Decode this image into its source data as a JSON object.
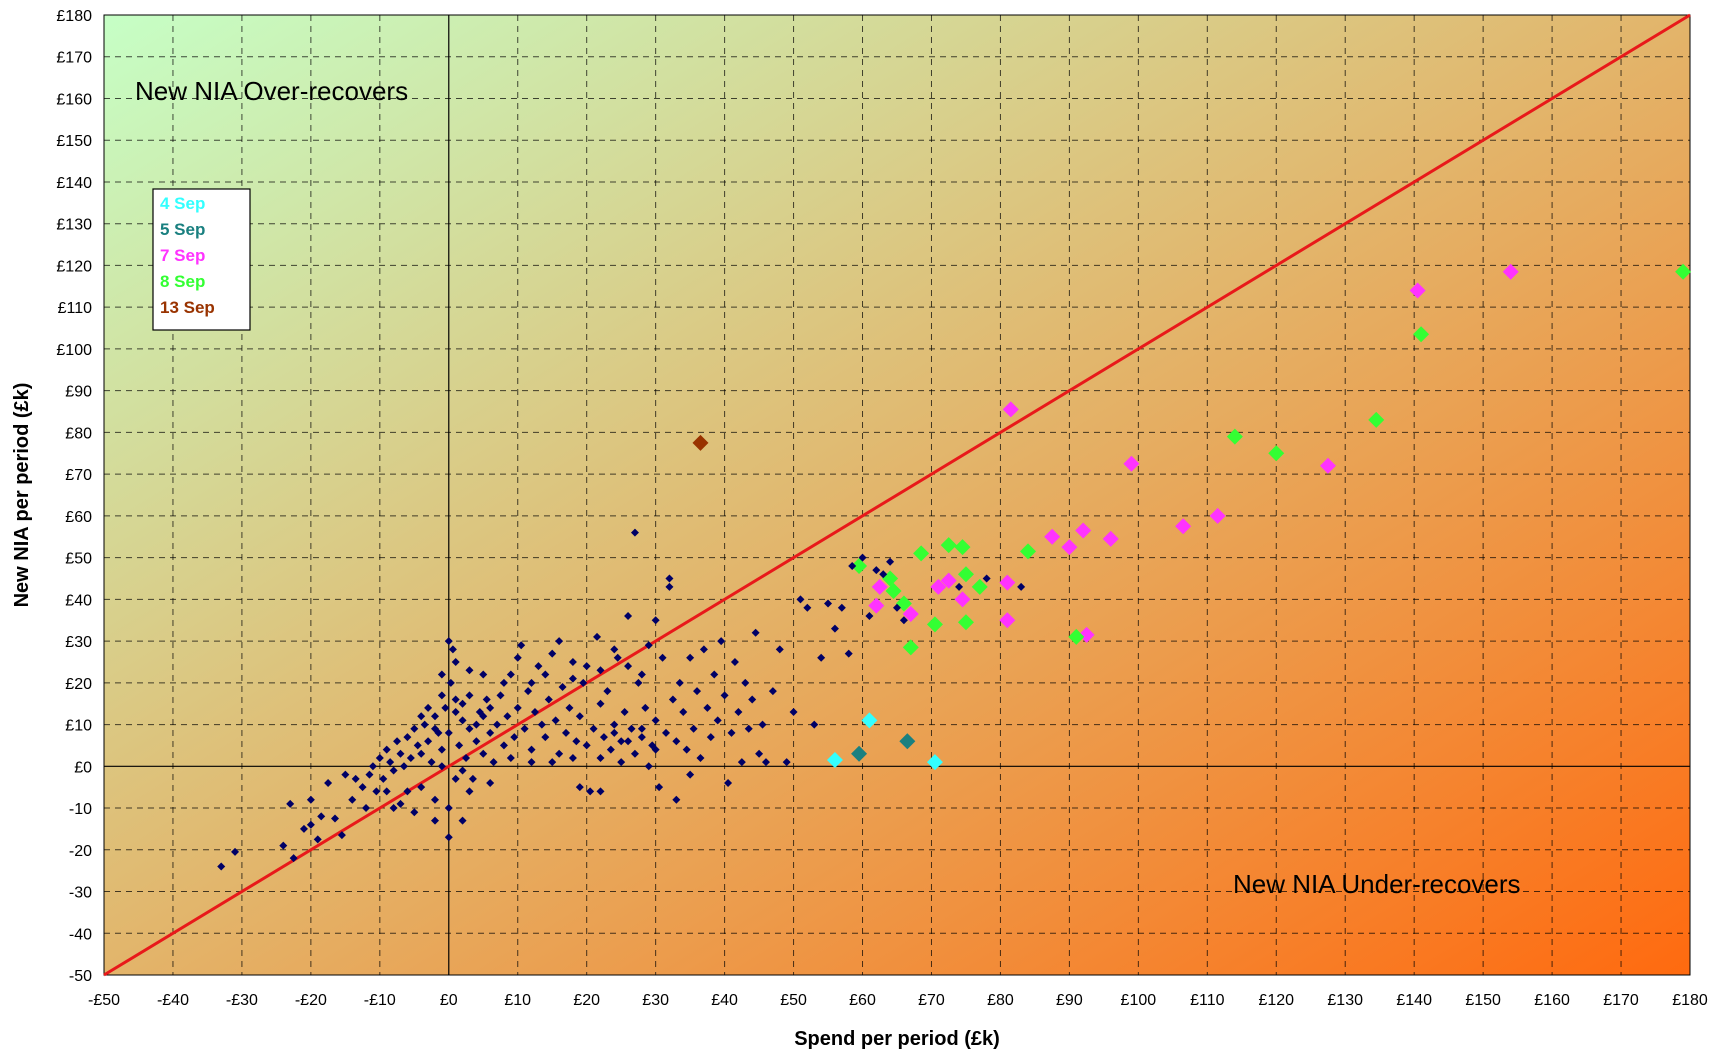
{
  "chart_data": {
    "type": "scatter",
    "xlabel": "Spend per period (£k)",
    "ylabel": "New NIA per period (£k)",
    "xlim": [
      -50,
      180
    ],
    "ylim": [
      -50,
      180
    ],
    "x_ticks": [
      "-£50",
      "-£40",
      "-£30",
      "-£20",
      "-£10",
      "£0",
      "£10",
      "£20",
      "£30",
      "£40",
      "£50",
      "£60",
      "£70",
      "£80",
      "£90",
      "£100",
      "£110",
      "£120",
      "£130",
      "£140",
      "£150",
      "£160",
      "£170",
      "£180"
    ],
    "y_ticks": [
      "-50",
      "-40",
      "-30",
      "-20",
      "-10",
      "£0",
      "£10",
      "£20",
      "£30",
      "£40",
      "£50",
      "£60",
      "£70",
      "£80",
      "£90",
      "£100",
      "£110",
      "£120",
      "£130",
      "£140",
      "£150",
      "£160",
      "£170",
      "£180"
    ],
    "grid": true,
    "background_gradient": [
      "#c6ffc6",
      "#ff6a0f"
    ],
    "reference_line": {
      "from": [
        -50,
        -50
      ],
      "to": [
        180,
        180
      ],
      "color": "#e8191a"
    },
    "annotations": {
      "over": "New NIA Over-recovers",
      "under": "New NIA Under-recovers"
    },
    "legend_position": "top-left",
    "legend": [
      {
        "label": "4 Sep",
        "color": "#33ffff"
      },
      {
        "label": "5 Sep",
        "color": "#1a8080"
      },
      {
        "label": "7 Sep",
        "color": "#ff33ff"
      },
      {
        "label": "8 Sep",
        "color": "#33ff33"
      },
      {
        "label": "13 Sep",
        "color": "#993300"
      }
    ],
    "series": [
      {
        "name": "4 Sep",
        "color": "#33ffff",
        "points": [
          [
            56,
            1.5
          ],
          [
            61,
            11
          ],
          [
            70.5,
            1
          ]
        ]
      },
      {
        "name": "5 Sep",
        "color": "#1a8080",
        "points": [
          [
            59.5,
            3
          ],
          [
            66.5,
            6
          ]
        ]
      },
      {
        "name": "7 Sep",
        "color": "#ff33ff",
        "points": [
          [
            62,
            38.5
          ],
          [
            62.5,
            43
          ],
          [
            67,
            36.5
          ],
          [
            71,
            43
          ],
          [
            72.5,
            44.5
          ],
          [
            74.5,
            40
          ],
          [
            81,
            44
          ],
          [
            81,
            35
          ],
          [
            81.5,
            85.5
          ],
          [
            87.5,
            55
          ],
          [
            90,
            52.5
          ],
          [
            92,
            56.5
          ],
          [
            92.5,
            31.5
          ],
          [
            96,
            54.5
          ],
          [
            99,
            72.5
          ],
          [
            106.5,
            57.5
          ],
          [
            111.5,
            60
          ],
          [
            127.5,
            72
          ],
          [
            140.5,
            114
          ],
          [
            154,
            118.5
          ]
        ]
      },
      {
        "name": "8 Sep",
        "color": "#33ff33",
        "points": [
          [
            59.5,
            48
          ],
          [
            64,
            45
          ],
          [
            64.5,
            42
          ],
          [
            66,
            39
          ],
          [
            67,
            28.5
          ],
          [
            68.5,
            51
          ],
          [
            70.5,
            34
          ],
          [
            72.5,
            53
          ],
          [
            74.5,
            52.5
          ],
          [
            75,
            46
          ],
          [
            75,
            34.5
          ],
          [
            77,
            43
          ],
          [
            84,
            51.5
          ],
          [
            91,
            31
          ],
          [
            114,
            79
          ],
          [
            120,
            75
          ],
          [
            134.5,
            83
          ],
          [
            141,
            103.5
          ],
          [
            179,
            118.5
          ]
        ]
      },
      {
        "name": "13 Sep",
        "color": "#993300",
        "points": [
          [
            36.5,
            77.5
          ]
        ]
      },
      {
        "name": "",
        "color": "#000066",
        "points": [
          [
            -33,
            -24
          ],
          [
            -31,
            -20.5
          ],
          [
            -24,
            -19
          ],
          [
            -23,
            -9
          ],
          [
            -22.5,
            -22
          ],
          [
            -21,
            -15
          ],
          [
            -20,
            -14
          ],
          [
            -20,
            -8
          ],
          [
            -19,
            -17.5
          ],
          [
            -18.5,
            -12
          ],
          [
            -17.5,
            -4
          ],
          [
            -16.5,
            -12.5
          ],
          [
            -15.5,
            -16.5
          ],
          [
            -15,
            -2
          ],
          [
            -14,
            -8
          ],
          [
            -13.5,
            -3
          ],
          [
            -12.5,
            -5
          ],
          [
            -12,
            -10
          ],
          [
            -11.5,
            -2
          ],
          [
            -11,
            0
          ],
          [
            -10.5,
            -6
          ],
          [
            -10,
            2
          ],
          [
            -9.5,
            -3
          ],
          [
            -9,
            4
          ],
          [
            -8.5,
            1
          ],
          [
            -8,
            -1
          ],
          [
            -7.5,
            6
          ],
          [
            -7,
            3
          ],
          [
            -6.5,
            0
          ],
          [
            -6,
            7
          ],
          [
            -5.5,
            2
          ],
          [
            -5,
            9
          ],
          [
            -4.5,
            5
          ],
          [
            -4,
            3
          ],
          [
            -3.5,
            10
          ],
          [
            -3,
            6
          ],
          [
            -2.5,
            1
          ],
          [
            -2,
            12
          ],
          [
            -1.5,
            8
          ],
          [
            -1,
            4
          ],
          [
            -0.5,
            14
          ],
          [
            0,
            8
          ],
          [
            0.3,
            20
          ],
          [
            0.6,
            28
          ],
          [
            1,
            16
          ],
          [
            1.5,
            5
          ],
          [
            2,
            11
          ],
          [
            2.5,
            2
          ],
          [
            3,
            9
          ],
          [
            3.5,
            -3
          ],
          [
            4,
            6
          ],
          [
            4.5,
            13
          ],
          [
            5,
            3
          ],
          [
            5.5,
            16
          ],
          [
            6,
            8
          ],
          [
            6.5,
            1
          ],
          [
            7,
            10
          ],
          [
            7.5,
            17
          ],
          [
            8,
            5
          ],
          [
            8.5,
            12
          ],
          [
            9,
            22
          ],
          [
            9.5,
            7
          ],
          [
            10,
            14
          ],
          [
            10.5,
            29
          ],
          [
            11,
            9
          ],
          [
            11.5,
            18
          ],
          [
            12,
            4
          ],
          [
            12.5,
            13
          ],
          [
            13,
            24
          ],
          [
            13.5,
            10
          ],
          [
            14,
            7
          ],
          [
            14.5,
            16
          ],
          [
            15,
            27
          ],
          [
            15.5,
            11
          ],
          [
            16,
            3
          ],
          [
            16.5,
            19
          ],
          [
            17,
            8
          ],
          [
            17.5,
            14
          ],
          [
            18,
            25
          ],
          [
            18.5,
            6
          ],
          [
            19,
            12
          ],
          [
            19.5,
            20
          ],
          [
            20,
            5
          ],
          [
            20.5,
            -6
          ],
          [
            21,
            9
          ],
          [
            21.5,
            31
          ],
          [
            22,
            15
          ],
          [
            22.5,
            7
          ],
          [
            23,
            18
          ],
          [
            23.5,
            4
          ],
          [
            24,
            10
          ],
          [
            24.5,
            26
          ],
          [
            25,
            6
          ],
          [
            25.5,
            13
          ],
          [
            26,
            36
          ],
          [
            26.5,
            9
          ],
          [
            27,
            3
          ],
          [
            27.5,
            20
          ],
          [
            28,
            7
          ],
          [
            28.5,
            14
          ],
          [
            29,
            29
          ],
          [
            29.5,
            5
          ],
          [
            30,
            11
          ],
          [
            30.5,
            -5
          ],
          [
            31,
            26
          ],
          [
            31.5,
            8
          ],
          [
            32,
            43
          ],
          [
            32.5,
            16
          ],
          [
            33,
            6
          ],
          [
            33.5,
            20
          ],
          [
            34,
            13
          ],
          [
            34.5,
            4
          ],
          [
            35,
            26
          ],
          [
            35.5,
            9
          ],
          [
            36,
            18
          ],
          [
            36.5,
            2
          ],
          [
            37,
            28
          ],
          [
            37.5,
            14
          ],
          [
            38,
            7
          ],
          [
            38.5,
            22
          ],
          [
            39,
            11
          ],
          [
            39.5,
            30
          ],
          [
            40,
            17
          ],
          [
            40.5,
            -4
          ],
          [
            41,
            8
          ],
          [
            41.5,
            25
          ],
          [
            42,
            13
          ],
          [
            42.5,
            1
          ],
          [
            43,
            20
          ],
          [
            43.5,
            9
          ],
          [
            44,
            16
          ],
          [
            44.5,
            32
          ],
          [
            45,
            3
          ],
          [
            45.5,
            10
          ],
          [
            46,
            1
          ],
          [
            47,
            18
          ],
          [
            48,
            28
          ],
          [
            49,
            1
          ],
          [
            50,
            13
          ],
          [
            51,
            40
          ],
          [
            52,
            38
          ],
          [
            53,
            10
          ],
          [
            54,
            26
          ],
          [
            55,
            39
          ],
          [
            56,
            33
          ],
          [
            57,
            38
          ],
          [
            58,
            27
          ],
          [
            58.5,
            48
          ],
          [
            60,
            50
          ],
          [
            61,
            36
          ],
          [
            62,
            47
          ],
          [
            63,
            46
          ],
          [
            64,
            49
          ],
          [
            65,
            38
          ],
          [
            66,
            35
          ],
          [
            74,
            43
          ],
          [
            78,
            45
          ],
          [
            83,
            43
          ],
          [
            -4,
            12
          ],
          [
            -3,
            14
          ],
          [
            -2,
            9
          ],
          [
            -1,
            17
          ],
          [
            1,
            13
          ],
          [
            2,
            15
          ],
          [
            3,
            17
          ],
          [
            4,
            10
          ],
          [
            5,
            12
          ],
          [
            6,
            14
          ],
          [
            -1,
            0
          ],
          [
            1,
            -3
          ],
          [
            2,
            -1
          ],
          [
            0,
            -10
          ],
          [
            -2,
            -8
          ],
          [
            0,
            30
          ],
          [
            1,
            25
          ],
          [
            -1,
            22
          ],
          [
            3,
            23
          ],
          [
            5,
            22
          ],
          [
            8,
            20
          ],
          [
            10,
            26
          ],
          [
            12,
            20
          ],
          [
            14,
            22
          ],
          [
            16,
            30
          ],
          [
            18,
            21
          ],
          [
            20,
            24
          ],
          [
            22,
            23
          ],
          [
            24,
            28
          ],
          [
            26,
            24
          ],
          [
            28,
            22
          ],
          [
            30,
            35
          ],
          [
            24,
            8
          ],
          [
            26,
            6
          ],
          [
            28,
            9
          ],
          [
            30,
            4
          ],
          [
            33,
            -8
          ],
          [
            35,
            -2
          ],
          [
            22,
            -6
          ],
          [
            19,
            -5
          ],
          [
            -6,
            -6
          ],
          [
            -8,
            -10
          ],
          [
            -4,
            -5
          ],
          [
            3,
            -6
          ],
          [
            6,
            -4
          ],
          [
            -2,
            -13
          ],
          [
            0,
            -17
          ],
          [
            18,
            2
          ],
          [
            15,
            1
          ],
          [
            22,
            2
          ],
          [
            25,
            1
          ],
          [
            29,
            0
          ],
          [
            12,
            1
          ],
          [
            9,
            2
          ],
          [
            27,
            56
          ],
          [
            32,
            45
          ],
          [
            -9,
            -6
          ],
          [
            -7,
            -9
          ],
          [
            -5,
            -11
          ],
          [
            2,
            -13
          ]
        ]
      }
    ]
  }
}
